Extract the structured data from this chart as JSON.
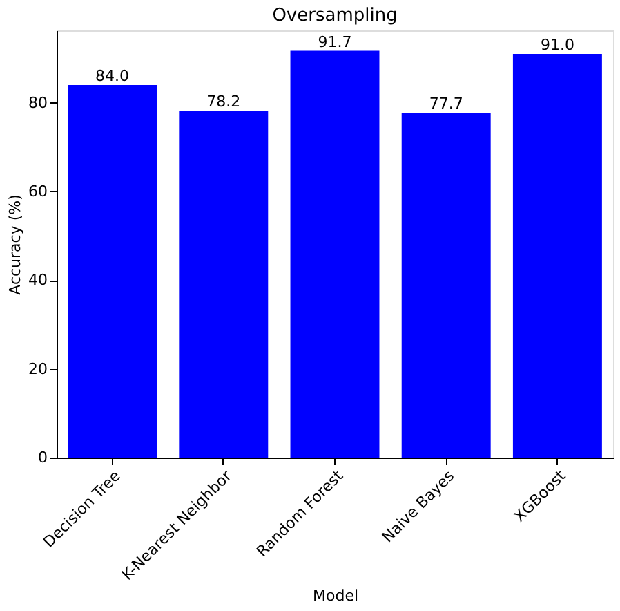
{
  "chart_data": {
    "type": "bar",
    "title": "Oversampling",
    "xlabel": "Model",
    "ylabel": "Accuracy (%)",
    "categories": [
      "Decision Tree",
      "K-Nearest Neighbor",
      "Random Forest",
      "Naive Bayes",
      "XGBoost"
    ],
    "values": [
      84.0,
      78.2,
      91.7,
      77.7,
      91.0
    ],
    "value_labels": [
      "84.0",
      "78.2",
      "91.7",
      "77.7",
      "91.0"
    ],
    "color": "#0000ff",
    "ylim": [
      0,
      96.3
    ],
    "yticks": [
      0,
      20,
      40,
      60,
      80
    ],
    "grid": false
  }
}
